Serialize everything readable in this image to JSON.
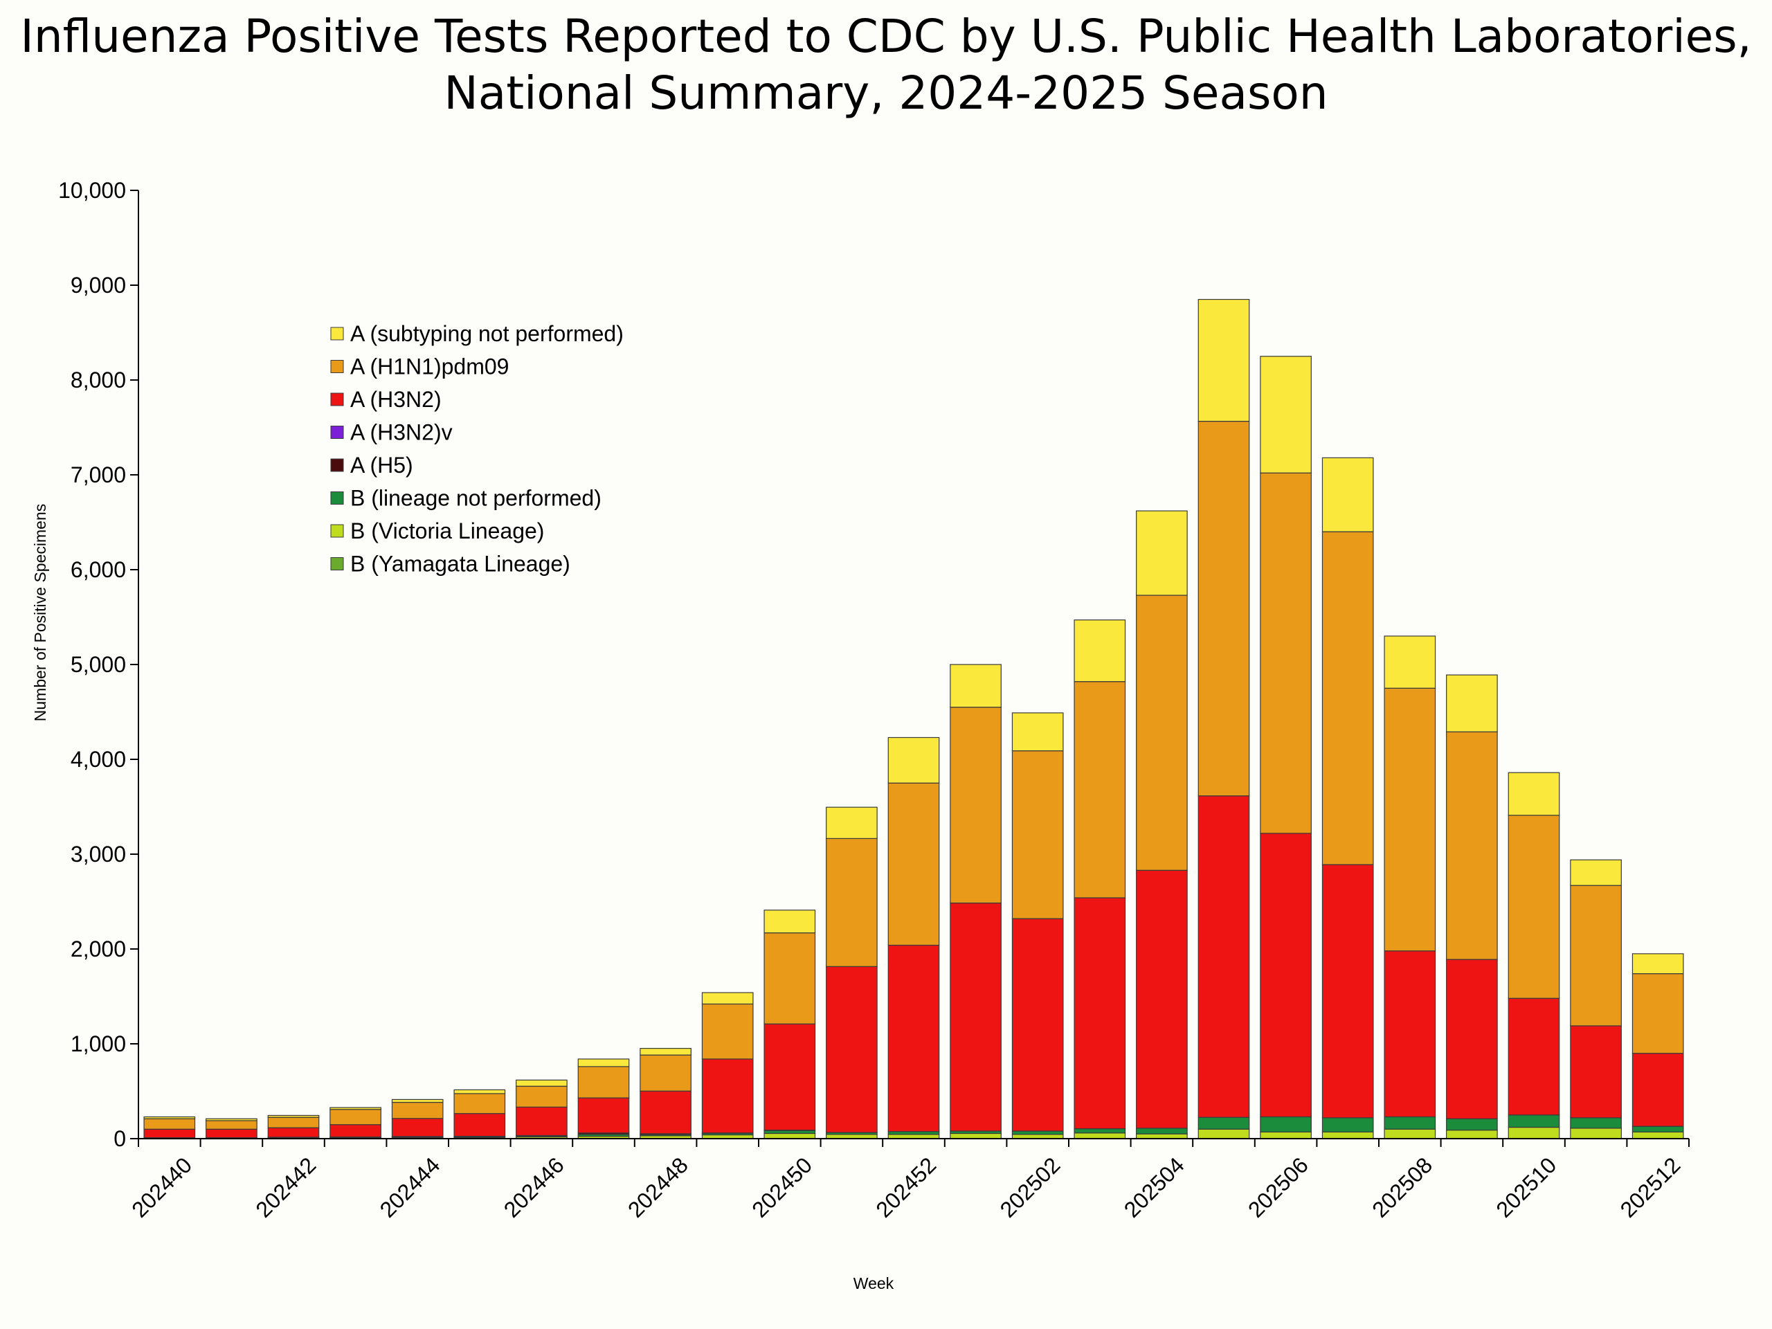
{
  "chart_data": {
    "type": "bar",
    "stacked": true,
    "title": "Influenza Positive Tests Reported to CDC by U.S. Public Health Laboratories,",
    "subtitle": "National Summary, 2024-2025 Season",
    "xlabel": "Week",
    "ylabel": "Number of Positive Specimens",
    "ylim": [
      0,
      10000
    ],
    "yticks": [
      0,
      1000,
      2000,
      3000,
      4000,
      5000,
      6000,
      7000,
      8000,
      9000,
      10000
    ],
    "ytick_labels": [
      "0",
      "1,000",
      "2,000",
      "3,000",
      "4,000",
      "5,000",
      "6,000",
      "7,000",
      "8,000",
      "9,000",
      "10,000"
    ],
    "categories": [
      "202440",
      "202441",
      "202442",
      "202443",
      "202444",
      "202445",
      "202446",
      "202447",
      "202448",
      "202449",
      "202450",
      "202451",
      "202452",
      "202501",
      "202502",
      "202503",
      "202504",
      "202505",
      "202506",
      "202507",
      "202508",
      "202509",
      "202510",
      "202511",
      "202512"
    ],
    "xtick_labels": [
      "202440",
      "202442",
      "202444",
      "202446",
      "202448",
      "202450",
      "202452",
      "202502",
      "202504",
      "202506",
      "202508",
      "202510",
      "202512"
    ],
    "legend_position": "upper-left",
    "series": [
      {
        "name": "B (Yamagata Lineage)",
        "color": "#6aaa2c",
        "values": [
          0,
          0,
          0,
          0,
          0,
          0,
          0,
          0,
          0,
          0,
          0,
          0,
          0,
          0,
          0,
          0,
          0,
          0,
          0,
          0,
          0,
          0,
          0,
          0,
          0
        ]
      },
      {
        "name": "B (Victoria Lineage)",
        "color": "#bfdc1e",
        "values": [
          5,
          5,
          5,
          8,
          10,
          12,
          18,
          25,
          30,
          40,
          55,
          45,
          45,
          55,
          45,
          60,
          50,
          100,
          70,
          70,
          100,
          90,
          120,
          110,
          70
        ]
      },
      {
        "name": "B (lineage not performed)",
        "color": "#1a8c3c",
        "values": [
          5,
          5,
          5,
          5,
          8,
          8,
          10,
          20,
          12,
          15,
          30,
          20,
          30,
          25,
          35,
          45,
          60,
          125,
          160,
          150,
          130,
          120,
          130,
          110,
          60
        ]
      },
      {
        "name": "A (H5)",
        "color": "#4a0c0c",
        "values": [
          0,
          0,
          5,
          5,
          5,
          5,
          5,
          15,
          10,
          5,
          5,
          0,
          0,
          0,
          0,
          0,
          0,
          0,
          0,
          0,
          0,
          0,
          0,
          0,
          0
        ]
      },
      {
        "name": "A (H3N2)v",
        "color": "#7c20d8",
        "values": [
          0,
          0,
          0,
          0,
          0,
          0,
          0,
          0,
          0,
          0,
          0,
          0,
          0,
          0,
          0,
          0,
          0,
          0,
          0,
          0,
          0,
          0,
          0,
          0,
          0
        ]
      },
      {
        "name": "A (H3N2)",
        "color": "#ee1414",
        "values": [
          90,
          90,
          100,
          130,
          190,
          240,
          300,
          370,
          450,
          780,
          1120,
          1750,
          1965,
          2405,
          2240,
          2435,
          2720,
          3390,
          2990,
          2670,
          1750,
          1680,
          1230,
          970,
          770
        ]
      },
      {
        "name": "A (H1N1)pdm09",
        "color": "#e89a18",
        "values": [
          110,
          90,
          110,
          160,
          170,
          210,
          220,
          330,
          380,
          580,
          960,
          1350,
          1710,
          2065,
          1770,
          2280,
          2900,
          3950,
          3800,
          3510,
          2770,
          2400,
          1930,
          1480,
          840
        ]
      },
      {
        "name": "A (subtyping not performed)",
        "color": "#fbe83c",
        "values": [
          20,
          20,
          20,
          20,
          30,
          40,
          65,
          80,
          70,
          120,
          240,
          330,
          480,
          450,
          400,
          650,
          890,
          1285,
          1230,
          780,
          550,
          600,
          450,
          270,
          210
        ]
      }
    ],
    "legend_order": [
      "A (subtyping not performed)",
      "A (H1N1)pdm09",
      "A (H3N2)",
      "A (H3N2)v",
      "A (H5)",
      "B (lineage not performed)",
      "B (Victoria Lineage)",
      "B (Yamagata Lineage)"
    ]
  }
}
